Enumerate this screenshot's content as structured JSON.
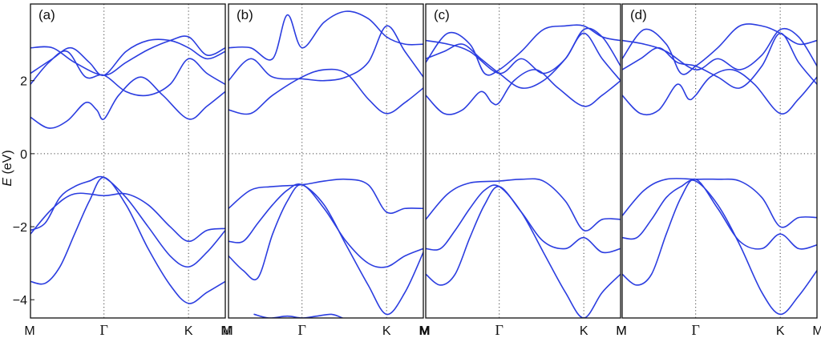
{
  "chart_data": {
    "type": "line",
    "ylabel": "E (eV)",
    "ylabel_parts": {
      "symbol": "E",
      "unit": " (eV)"
    },
    "ylim": [
      -4.5,
      4.1
    ],
    "yticks": [
      "2",
      "0",
      "−2",
      "−4"
    ],
    "ytick_values": [
      2,
      0,
      -2,
      -4
    ],
    "kpath": [
      "M",
      "Γ",
      "K",
      "M"
    ],
    "kpath_positions": [
      0,
      1,
      2.15,
      2.65
    ],
    "reference_line": 0,
    "grid": "dotted vertical at Γ and K, dotted horizontal at E = 0",
    "line_color": "#2b3de0",
    "panels": [
      {
        "label": "(a)",
        "bands": [
          {
            "x": [
              0,
              0.2,
              0.4,
              0.6,
              0.8,
              1.0,
              1.3,
              1.6,
              1.9,
              2.15,
              2.4,
              2.65
            ],
            "y": [
              -3.5,
              -3.55,
              -3.1,
              -2.2,
              -1.3,
              -0.65,
              -1.4,
              -2.6,
              -3.6,
              -4.1,
              -3.8,
              -3.5
            ]
          },
          {
            "x": [
              0,
              0.2,
              0.4,
              0.6,
              0.8,
              1.0,
              1.3,
              1.6,
              1.9,
              2.15,
              2.4,
              2.65
            ],
            "y": [
              -2.1,
              -1.9,
              -1.2,
              -0.9,
              -0.75,
              -0.65,
              -1.2,
              -2.0,
              -2.8,
              -3.1,
              -2.7,
              -2.1
            ]
          },
          {
            "x": [
              0,
              0.3,
              0.6,
              1.0,
              1.3,
              1.6,
              1.9,
              2.15,
              2.4,
              2.65
            ],
            "y": [
              -2.2,
              -1.5,
              -1.1,
              -1.15,
              -1.1,
              -1.4,
              -2.0,
              -2.4,
              -2.1,
              -2.05
            ]
          },
          {
            "x": [
              0,
              0.25,
              0.5,
              0.75,
              0.9,
              1.0,
              1.2,
              1.5,
              1.8,
              2.15,
              2.4,
              2.65
            ],
            "y": [
              1.0,
              0.7,
              0.9,
              1.4,
              1.2,
              0.95,
              1.6,
              2.1,
              1.6,
              0.95,
              1.3,
              1.7
            ]
          },
          {
            "x": [
              0,
              0.25,
              0.5,
              0.75,
              1.0,
              1.3,
              1.6,
              1.9,
              2.15,
              2.4,
              2.65
            ],
            "y": [
              1.9,
              2.5,
              2.8,
              2.1,
              2.15,
              1.7,
              1.6,
              1.9,
              2.6,
              2.2,
              1.9
            ]
          },
          {
            "x": [
              0,
              0.3,
              0.6,
              1.0,
              1.3,
              1.6,
              1.9,
              2.15,
              2.4,
              2.65
            ],
            "y": [
              2.9,
              2.9,
              2.5,
              2.15,
              2.5,
              2.85,
              3.1,
              3.2,
              2.7,
              2.9
            ]
          },
          {
            "x": [
              0,
              0.3,
              0.55,
              0.8,
              1.0,
              1.3,
              1.6,
              1.9,
              2.15,
              2.4,
              2.65
            ],
            "y": [
              2.2,
              2.6,
              2.9,
              2.5,
              2.15,
              2.8,
              3.1,
              3.1,
              2.9,
              2.6,
              2.8
            ]
          }
        ]
      },
      {
        "label": "(b)",
        "bands": [
          {
            "x": [
              0,
              0.2,
              0.4,
              0.6,
              0.8,
              1.0,
              1.3,
              1.6,
              1.9,
              2.15,
              2.4,
              2.65
            ],
            "y": [
              -2.4,
              -2.4,
              -1.9,
              -1.4,
              -1.0,
              -0.85,
              -1.4,
              -2.5,
              -3.6,
              -4.4,
              -3.8,
              -2.7
            ]
          },
          {
            "x": [
              0,
              0.2,
              0.4,
              0.6,
              0.8,
              1.0,
              1.3,
              1.6,
              1.9,
              2.15,
              2.4,
              2.65
            ],
            "y": [
              -2.8,
              -3.2,
              -3.4,
              -2.2,
              -1.3,
              -0.85,
              -1.5,
              -2.4,
              -3.0,
              -3.1,
              -2.8,
              -2.6
            ]
          },
          {
            "x": [
              0,
              0.3,
              0.6,
              1.0,
              1.3,
              1.6,
              1.9,
              2.15,
              2.4,
              2.65
            ],
            "y": [
              -1.5,
              -1.0,
              -0.9,
              -0.85,
              -0.75,
              -0.7,
              -0.85,
              -1.6,
              -1.5,
              -1.5
            ]
          },
          {
            "x": [
              0.35,
              0.55,
              0.8,
              1.0,
              1.2,
              1.4,
              1.55
            ],
            "y": [
              -4.4,
              -4.5,
              -4.45,
              -4.5,
              -4.45,
              -4.4,
              -4.5
            ]
          },
          {
            "x": [
              0,
              0.3,
              0.6,
              1.0,
              1.3,
              1.6,
              1.9,
              2.15,
              2.4,
              2.65
            ],
            "y": [
              1.2,
              1.1,
              1.6,
              2.1,
              2.3,
              2.2,
              1.5,
              1.1,
              1.4,
              1.8
            ]
          },
          {
            "x": [
              0,
              0.3,
              0.6,
              1.0,
              1.3,
              1.6,
              1.9,
              2.15,
              2.4,
              2.65
            ],
            "y": [
              2.0,
              2.6,
              2.1,
              2.05,
              2.0,
              2.1,
              2.5,
              3.5,
              2.8,
              2.1
            ]
          },
          {
            "x": [
              0,
              0.3,
              0.6,
              0.8,
              1.0,
              1.3,
              1.6,
              1.9,
              2.15,
              2.4,
              2.65
            ],
            "y": [
              2.9,
              2.9,
              2.6,
              3.8,
              2.9,
              3.6,
              3.9,
              3.7,
              3.2,
              3.0,
              3.0
            ]
          }
        ]
      },
      {
        "label": "(c)",
        "bands": [
          {
            "x": [
              0,
              0.2,
              0.4,
              0.6,
              0.8,
              1.0,
              1.3,
              1.6,
              1.9,
              2.15,
              2.4,
              2.65
            ],
            "y": [
              -2.6,
              -2.6,
              -2.1,
              -1.5,
              -1.0,
              -0.9,
              -1.6,
              -2.7,
              -3.8,
              -4.5,
              -3.8,
              -3.3
            ]
          },
          {
            "x": [
              0,
              0.2,
              0.4,
              0.6,
              0.8,
              1.0,
              1.3,
              1.6,
              1.9,
              2.15,
              2.4,
              2.65
            ],
            "y": [
              -3.3,
              -3.6,
              -3.3,
              -2.3,
              -1.4,
              -0.9,
              -1.6,
              -2.4,
              -2.6,
              -2.3,
              -2.7,
              -2.6
            ]
          },
          {
            "x": [
              0,
              0.3,
              0.6,
              1.0,
              1.3,
              1.6,
              1.9,
              2.15,
              2.4,
              2.65
            ],
            "y": [
              -1.8,
              -1.1,
              -0.8,
              -0.75,
              -0.7,
              -0.75,
              -1.3,
              -2.1,
              -1.8,
              -1.8
            ]
          },
          {
            "x": [
              0,
              0.25,
              0.5,
              0.75,
              0.9,
              1.0,
              1.2,
              1.5,
              1.8,
              2.15,
              2.4,
              2.65
            ],
            "y": [
              1.6,
              1.1,
              1.2,
              1.7,
              1.4,
              1.4,
              2.0,
              2.3,
              1.8,
              1.3,
              1.6,
              2.0
            ]
          },
          {
            "x": [
              0,
              0.25,
              0.5,
              0.75,
              1.0,
              1.3,
              1.6,
              1.9,
              2.15,
              2.4,
              2.65
            ],
            "y": [
              2.6,
              2.8,
              3.0,
              2.6,
              2.2,
              1.8,
              2.0,
              2.6,
              3.3,
              2.6,
              2.0
            ]
          },
          {
            "x": [
              0,
              0.3,
              0.6,
              0.8,
              1.0,
              1.3,
              1.6,
              1.9,
              2.15,
              2.4,
              2.65
            ],
            "y": [
              2.5,
              3.3,
              3.0,
              2.2,
              2.3,
              2.8,
              3.4,
              3.5,
              3.5,
              3.2,
              3.1
            ]
          },
          {
            "x": [
              0,
              0.3,
              0.6,
              1.0,
              1.3,
              1.6,
              1.9,
              2.15,
              2.4,
              2.65
            ],
            "y": [
              3.1,
              3.0,
              2.8,
              2.2,
              2.6,
              2.2,
              2.6,
              3.4,
              3.2,
              2.4
            ]
          }
        ]
      },
      {
        "label": "(d)",
        "bands": [
          {
            "x": [
              0,
              0.2,
              0.4,
              0.6,
              0.8,
              1.0,
              1.3,
              1.6,
              1.9,
              2.15,
              2.4,
              2.65
            ],
            "y": [
              -2.3,
              -2.3,
              -1.8,
              -1.2,
              -0.9,
              -0.75,
              -1.4,
              -2.5,
              -3.8,
              -4.4,
              -3.9,
              -3.2
            ]
          },
          {
            "x": [
              0,
              0.2,
              0.4,
              0.6,
              0.8,
              1.0,
              1.3,
              1.6,
              1.9,
              2.15,
              2.4,
              2.65
            ],
            "y": [
              -3.3,
              -3.6,
              -3.3,
              -2.2,
              -1.2,
              -0.7,
              -1.5,
              -2.4,
              -2.6,
              -2.2,
              -2.6,
              -2.5
            ]
          },
          {
            "x": [
              0,
              0.3,
              0.6,
              1.0,
              1.3,
              1.6,
              1.9,
              2.15,
              2.4,
              2.65
            ],
            "y": [
              -1.7,
              -1.0,
              -0.7,
              -0.7,
              -0.7,
              -0.75,
              -1.2,
              -2.0,
              -1.75,
              -1.75
            ]
          },
          {
            "x": [
              0,
              0.25,
              0.5,
              0.75,
              0.9,
              1.0,
              1.2,
              1.5,
              1.8,
              2.15,
              2.4,
              2.65
            ],
            "y": [
              1.6,
              1.1,
              1.2,
              1.9,
              1.5,
              1.6,
              2.1,
              2.3,
              1.9,
              1.1,
              1.5,
              2.1
            ]
          },
          {
            "x": [
              0,
              0.25,
              0.5,
              0.75,
              1.0,
              1.3,
              1.6,
              1.9,
              2.15,
              2.4,
              2.65
            ],
            "y": [
              2.3,
              2.6,
              2.9,
              2.5,
              2.4,
              2.1,
              1.8,
              2.4,
              3.3,
              2.5,
              1.9
            ]
          },
          {
            "x": [
              0,
              0.3,
              0.6,
              0.8,
              1.0,
              1.3,
              1.6,
              1.9,
              2.15,
              2.4,
              2.65
            ],
            "y": [
              2.6,
              3.4,
              3.0,
              2.2,
              2.4,
              2.9,
              3.5,
              3.5,
              3.3,
              3.0,
              3.1
            ]
          },
          {
            "x": [
              0,
              0.3,
              0.6,
              1.0,
              1.3,
              1.6,
              1.9,
              2.15,
              2.4,
              2.65
            ],
            "y": [
              3.1,
              3.0,
              2.8,
              2.3,
              2.6,
              2.3,
              2.7,
              3.4,
              3.2,
              2.4
            ]
          }
        ]
      }
    ]
  }
}
